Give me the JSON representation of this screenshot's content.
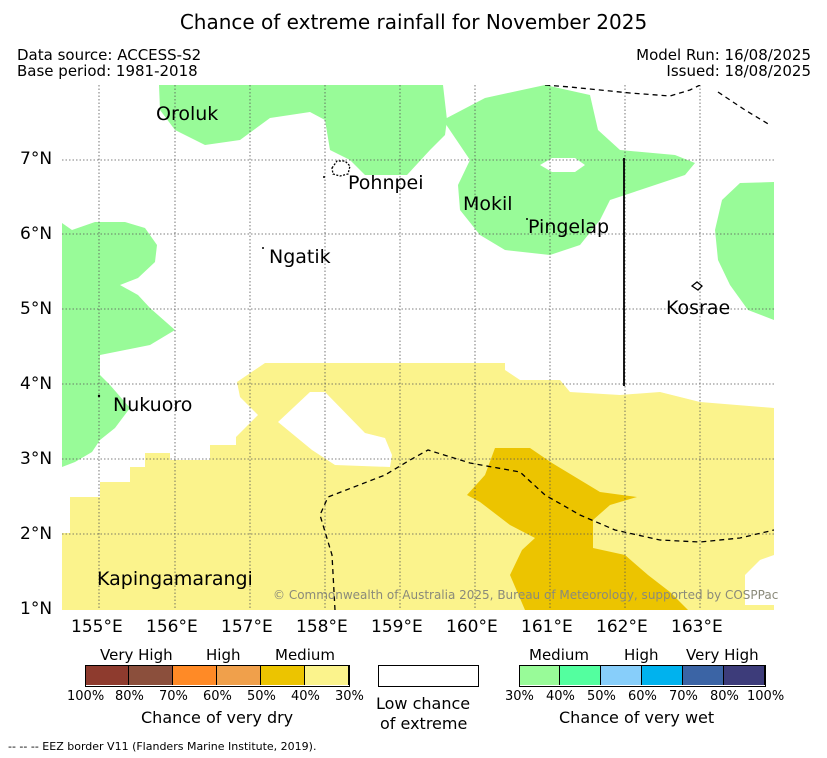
{
  "title": "Chance of extreme rainfall for November 2025",
  "meta": {
    "data_source": "Data source: ACCESS-S2",
    "base_period": "Base period: 1981-2018",
    "model_run": "Model Run: 16/08/2025",
    "issued": "Issued: 18/08/2025"
  },
  "map": {
    "lat_ticks": [
      "1°N",
      "2°N",
      "3°N",
      "4°N",
      "5°N",
      "6°N",
      "7°N"
    ],
    "lon_ticks": [
      "155°E",
      "156°E",
      "157°E",
      "158°E",
      "159°E",
      "160°E",
      "161°E",
      "162°E",
      "163°E"
    ],
    "places": {
      "oroluk": "Oroluk",
      "pohnpei": "Pohnpei",
      "mokil": "Mokil",
      "pingelap": "Pingelap",
      "ngatik": "Ngatik",
      "kosrae": "Kosrae",
      "nukuoro": "Nukuoro",
      "kapingamarangi": "Kapingamarangi"
    },
    "copyright": "© Commonwealth of Australia 2025, Bureau of Meteorology, supported by COSPPac",
    "colors": {
      "wet_medium": "#98fb98",
      "dry_30_50": "#fbf38c",
      "dry_50_70": "#ecc400"
    }
  },
  "legend": {
    "dry": {
      "categories": [
        "Very High",
        "High",
        "Medium"
      ],
      "labels": [
        "100%",
        "80%",
        "70%",
        "60%",
        "50%",
        "40%",
        "30%"
      ],
      "colors": [
        "#8e3b2e",
        "#8b4f3c",
        "#ff8a26",
        "#f0a04b",
        "#ecc400",
        "#fbf38c"
      ],
      "caption": "Chance of very dry"
    },
    "low": {
      "caption_line1": "Low chance",
      "caption_line2": "of extreme"
    },
    "wet": {
      "categories": [
        "Medium",
        "High",
        "Very High"
      ],
      "labels": [
        "30%",
        "40%",
        "50%",
        "60%",
        "70%",
        "80%",
        "100%"
      ],
      "colors": [
        "#98fb98",
        "#53ff9f",
        "#87cefa",
        "#00b2ee",
        "#3b64a5",
        "#3d3c7a"
      ],
      "caption": "Chance of very wet"
    }
  },
  "eez_note": "-- -- -- EEZ border V11 (Flanders Marine Institute, 2019)."
}
